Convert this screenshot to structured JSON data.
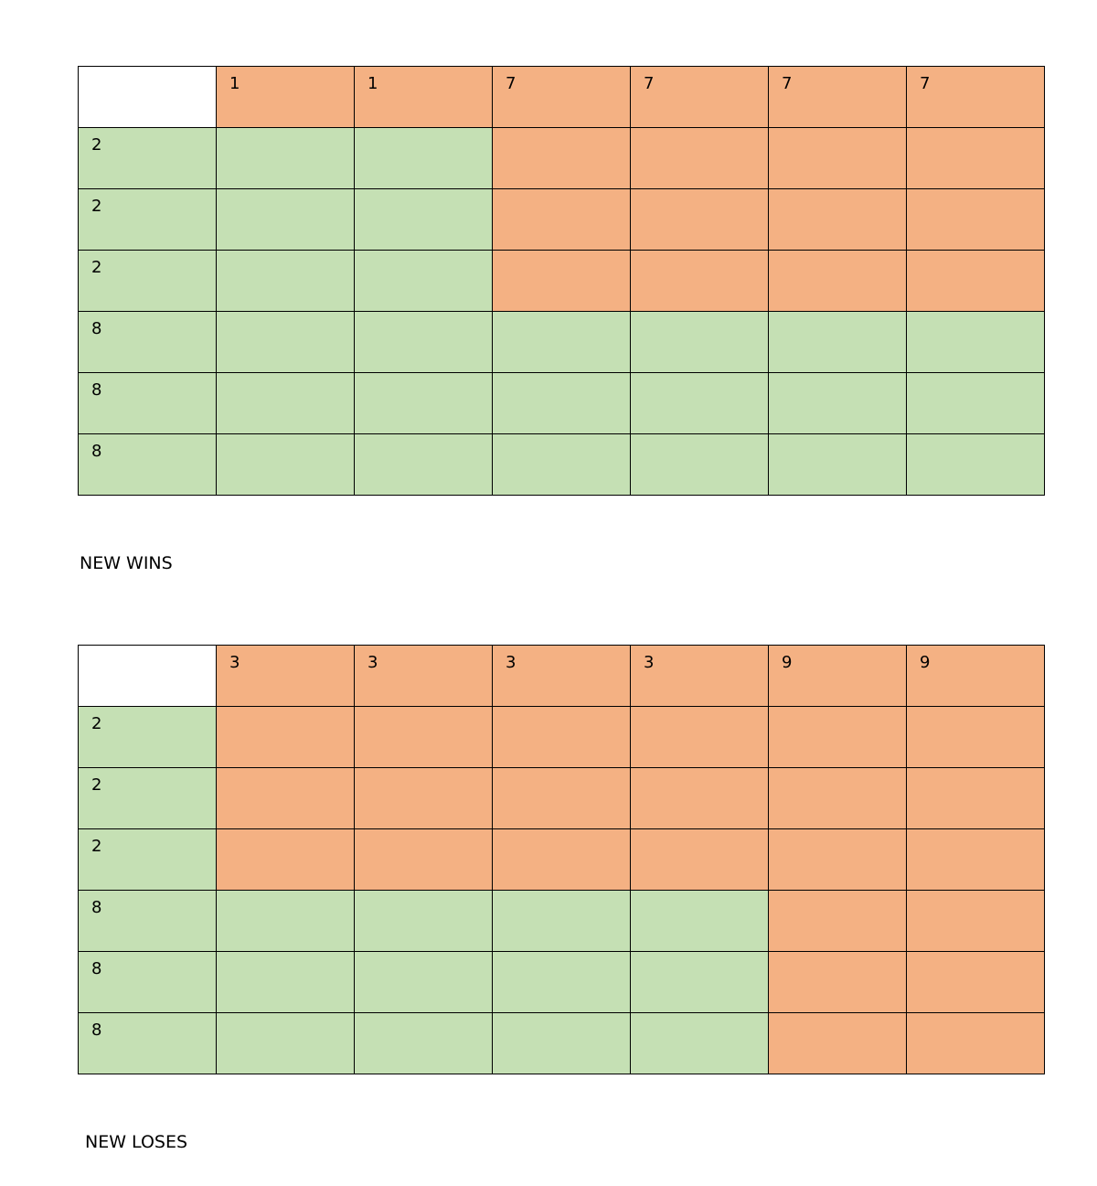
{
  "colors": {
    "orange": "#f4b183",
    "green": "#c5e0b4",
    "white": "#ffffff"
  },
  "tables": [
    {
      "caption": "NEW WINS",
      "col_headers": [
        "1",
        "1",
        "7",
        "7",
        "7",
        "7"
      ],
      "row_headers": [
        "2",
        "2",
        "2",
        "8",
        "8",
        "8"
      ],
      "cells": [
        [
          "green",
          "green",
          "orange",
          "orange",
          "orange",
          "orange"
        ],
        [
          "green",
          "green",
          "orange",
          "orange",
          "orange",
          "orange"
        ],
        [
          "green",
          "green",
          "orange",
          "orange",
          "orange",
          "orange"
        ],
        [
          "green",
          "green",
          "green",
          "green",
          "green",
          "green"
        ],
        [
          "green",
          "green",
          "green",
          "green",
          "green",
          "green"
        ],
        [
          "green",
          "green",
          "green",
          "green",
          "green",
          "green"
        ]
      ]
    },
    {
      "caption": "NEW LOSES",
      "col_headers": [
        "3",
        "3",
        "3",
        "3",
        "9",
        "9"
      ],
      "row_headers": [
        "2",
        "2",
        "2",
        "8",
        "8",
        "8"
      ],
      "cells": [
        [
          "orange",
          "orange",
          "orange",
          "orange",
          "orange",
          "orange"
        ],
        [
          "orange",
          "orange",
          "orange",
          "orange",
          "orange",
          "orange"
        ],
        [
          "orange",
          "orange",
          "orange",
          "orange",
          "orange",
          "orange"
        ],
        [
          "green",
          "green",
          "green",
          "green",
          "orange",
          "orange"
        ],
        [
          "green",
          "green",
          "green",
          "green",
          "orange",
          "orange"
        ],
        [
          "green",
          "green",
          "green",
          "green",
          "orange",
          "orange"
        ]
      ]
    }
  ]
}
